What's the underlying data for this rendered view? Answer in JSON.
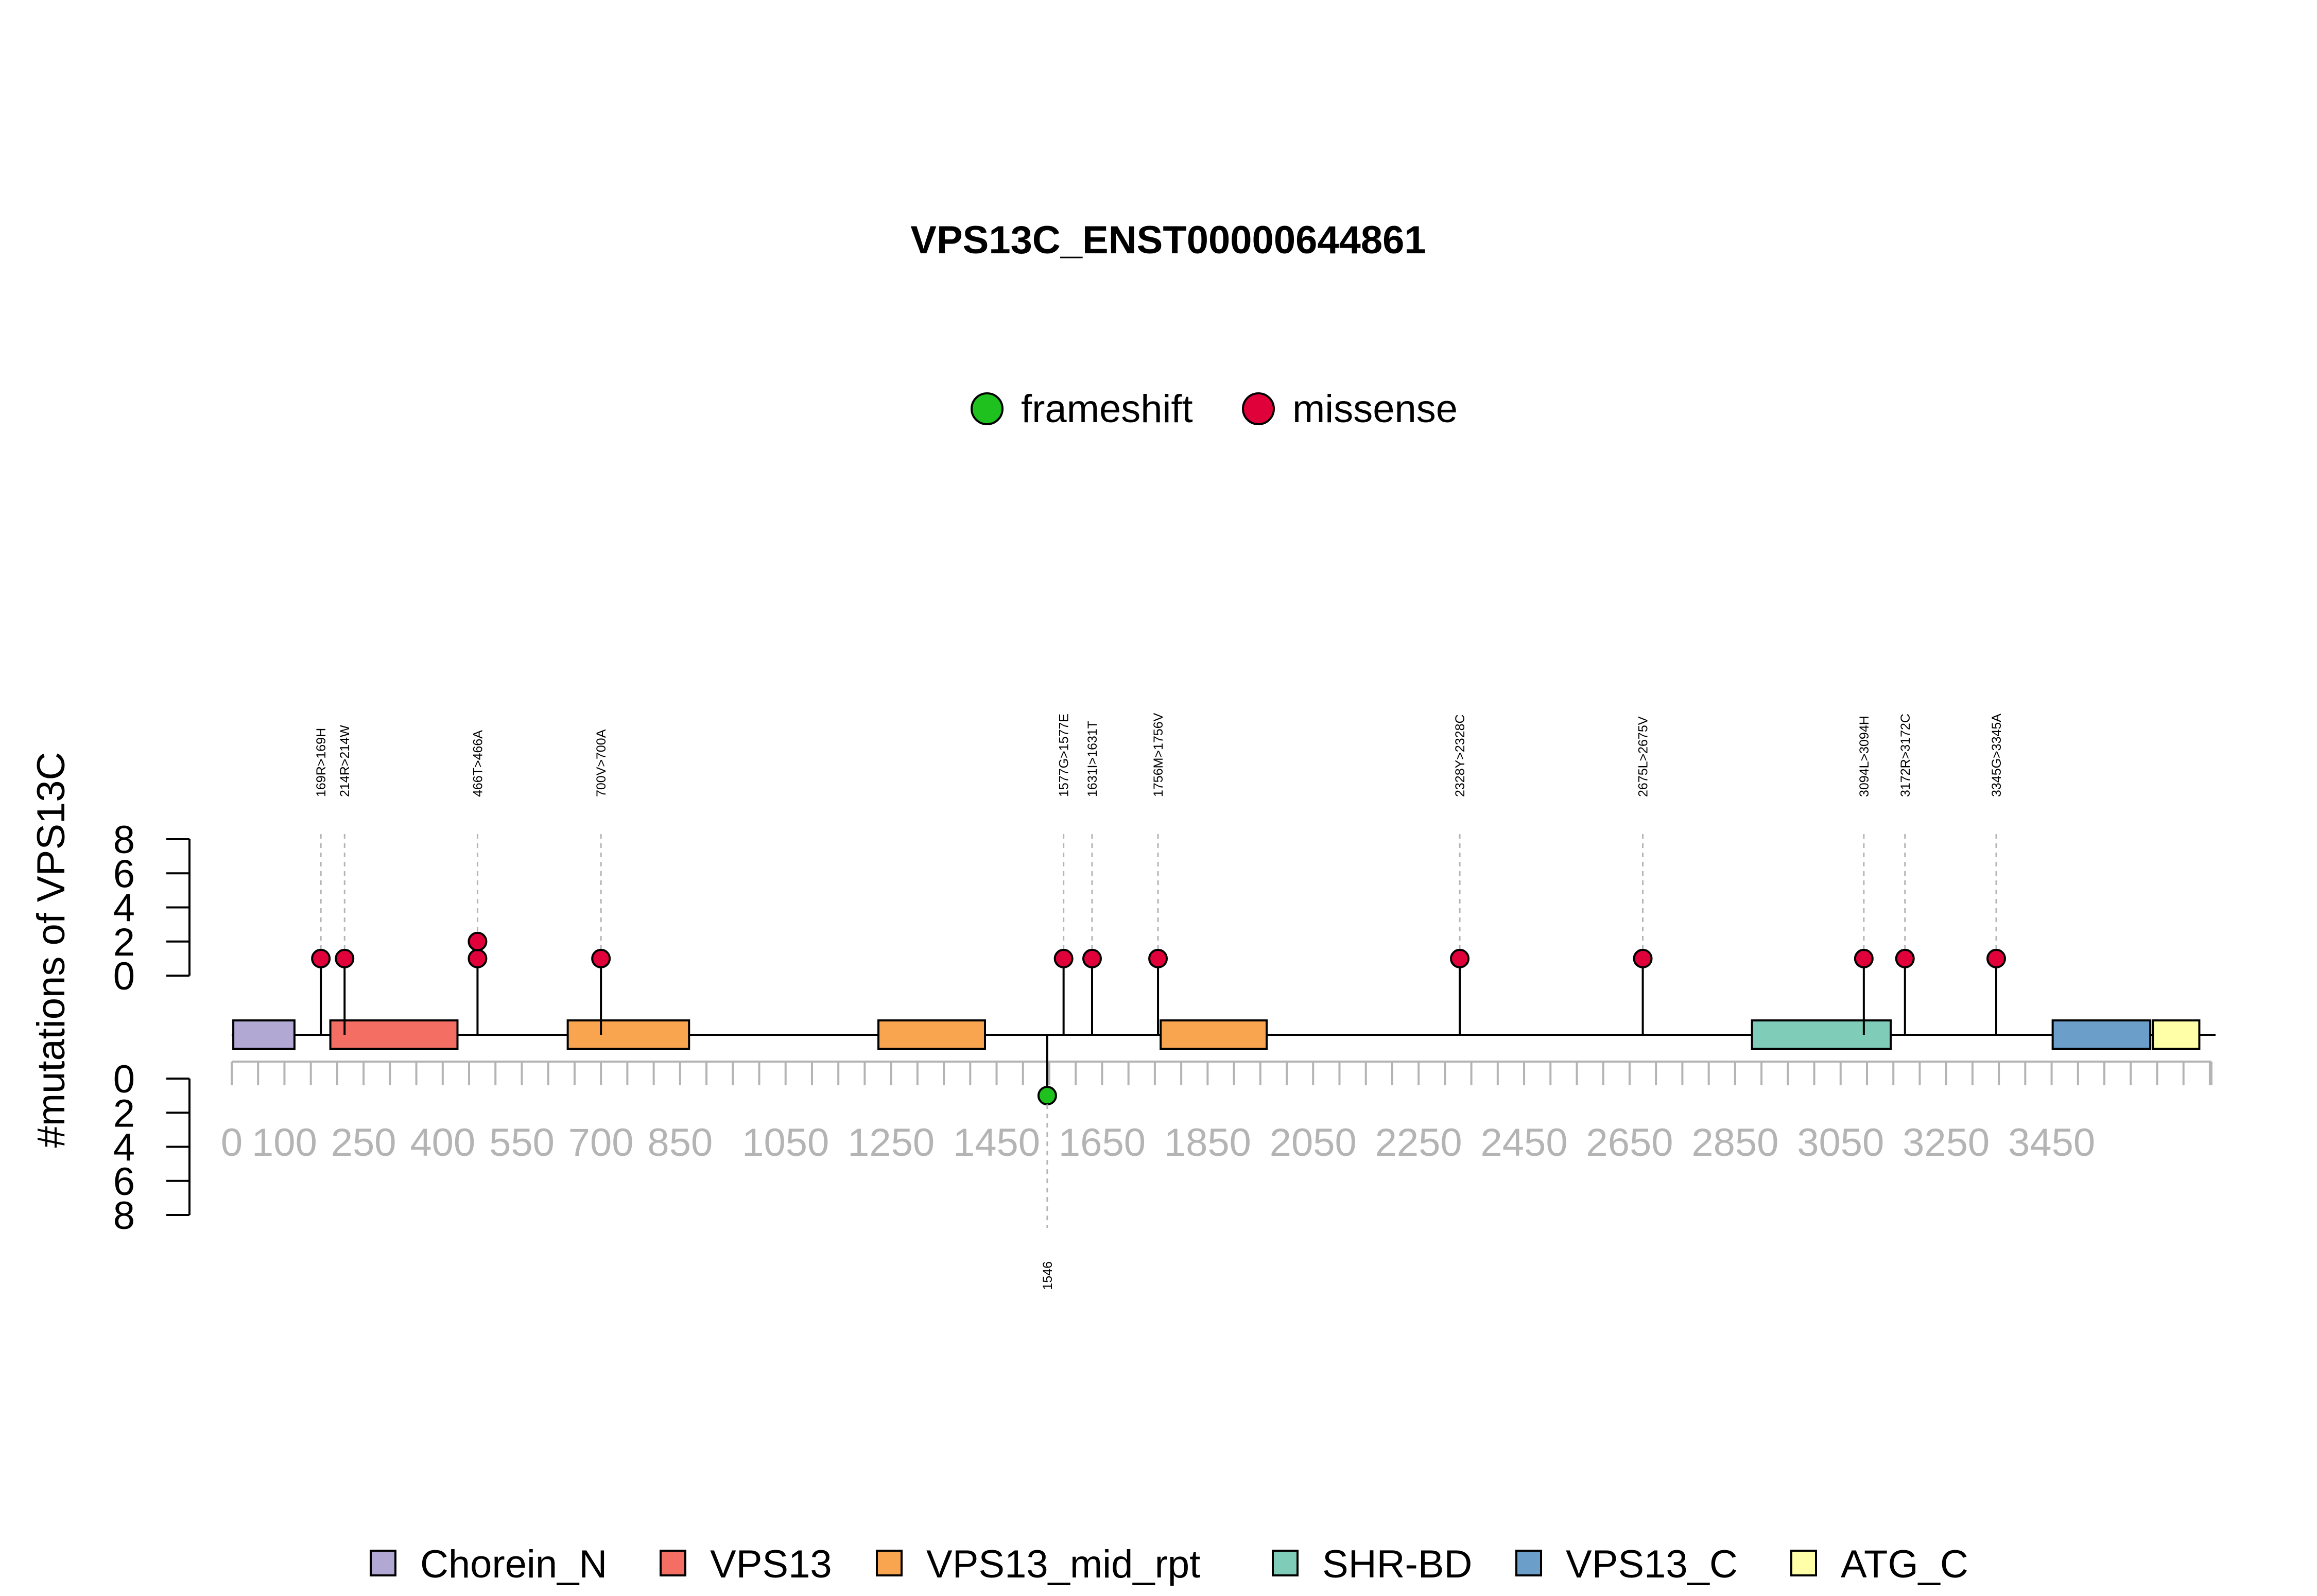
{
  "chart_data": {
    "type": "lollipop",
    "title": "VPS13C_ENST00000644861",
    "ylabel": "#mutations of VPS13C",
    "protein_length": 3753,
    "ylim": [
      0,
      8
    ],
    "yticks": [
      0,
      2,
      4,
      6,
      8
    ],
    "xticks": [
      0,
      100,
      250,
      400,
      550,
      700,
      850,
      1050,
      1250,
      1450,
      1650,
      1850,
      2050,
      2250,
      2450,
      2650,
      2850,
      3050,
      3250,
      3450
    ],
    "mutation_legend": [
      {
        "name": "frameshift",
        "color": "#1fc11f"
      },
      {
        "name": "missense",
        "color": "#e0003a"
      }
    ],
    "domains": [
      {
        "name": "Chorein_N",
        "start": 3,
        "end": 119,
        "color": "#b1a8d3"
      },
      {
        "name": "VPS13",
        "start": 187,
        "end": 428,
        "color": "#f46e63"
      },
      {
        "name": "VPS13_mid_rpt",
        "start": 637,
        "end": 867,
        "color": "#f9a550"
      },
      {
        "name": "VPS13_mid_rpt",
        "start": 1226,
        "end": 1428,
        "color": "#f9a550"
      },
      {
        "name": "VPS13_mid_rpt",
        "start": 1761,
        "end": 1962,
        "color": "#f9a550"
      },
      {
        "name": "SHR-BD",
        "start": 2882,
        "end": 3145,
        "color": "#7fccb8"
      },
      {
        "name": "VPS13_C",
        "start": 3452,
        "end": 3637,
        "color": "#6b9fca"
      },
      {
        "name": "ATG_C",
        "start": 3642,
        "end": 3730,
        "color": "#ffffa8"
      }
    ],
    "domain_legend": [
      {
        "name": "Chorein_N",
        "color": "#b1a8d3"
      },
      {
        "name": "VPS13",
        "color": "#f46e63"
      },
      {
        "name": "VPS13_mid_rpt",
        "color": "#f9a550"
      },
      {
        "name": "SHR-BD",
        "color": "#7fccb8"
      },
      {
        "name": "VPS13_C",
        "color": "#6b9fca"
      },
      {
        "name": "ATG_C",
        "color": "#ffffa8"
      }
    ],
    "mutations": [
      {
        "position": 169,
        "label": "169R>169H",
        "type": "missense",
        "count": 1,
        "direction": "up"
      },
      {
        "position": 214,
        "label": "214R>214W",
        "type": "missense",
        "count": 1,
        "direction": "up"
      },
      {
        "position": 466,
        "label": "466T>466A",
        "type": "missense",
        "count": 2,
        "direction": "up"
      },
      {
        "position": 700,
        "label": "700V>700A",
        "type": "missense",
        "count": 1,
        "direction": "up"
      },
      {
        "position": 1546,
        "label": "1546",
        "type": "frameshift",
        "count": 1,
        "direction": "down"
      },
      {
        "position": 1577,
        "label": "1577G>1577E",
        "type": "missense",
        "count": 1,
        "direction": "up"
      },
      {
        "position": 1631,
        "label": "1631I>1631T",
        "type": "missense",
        "count": 1,
        "direction": "up"
      },
      {
        "position": 1756,
        "label": "1756M>1756V",
        "type": "missense",
        "count": 1,
        "direction": "up"
      },
      {
        "position": 2328,
        "label": "2328Y>2328C",
        "type": "missense",
        "count": 1,
        "direction": "up"
      },
      {
        "position": 2675,
        "label": "2675L>2675V",
        "type": "missense",
        "count": 1,
        "direction": "up"
      },
      {
        "position": 3094,
        "label": "3094L>3094H",
        "type": "missense",
        "count": 1,
        "direction": "up"
      },
      {
        "position": 3172,
        "label": "3172R>3172C",
        "type": "missense",
        "count": 1,
        "direction": "up"
      },
      {
        "position": 3345,
        "label": "3345G>3345A",
        "type": "missense",
        "count": 1,
        "direction": "up"
      }
    ]
  }
}
